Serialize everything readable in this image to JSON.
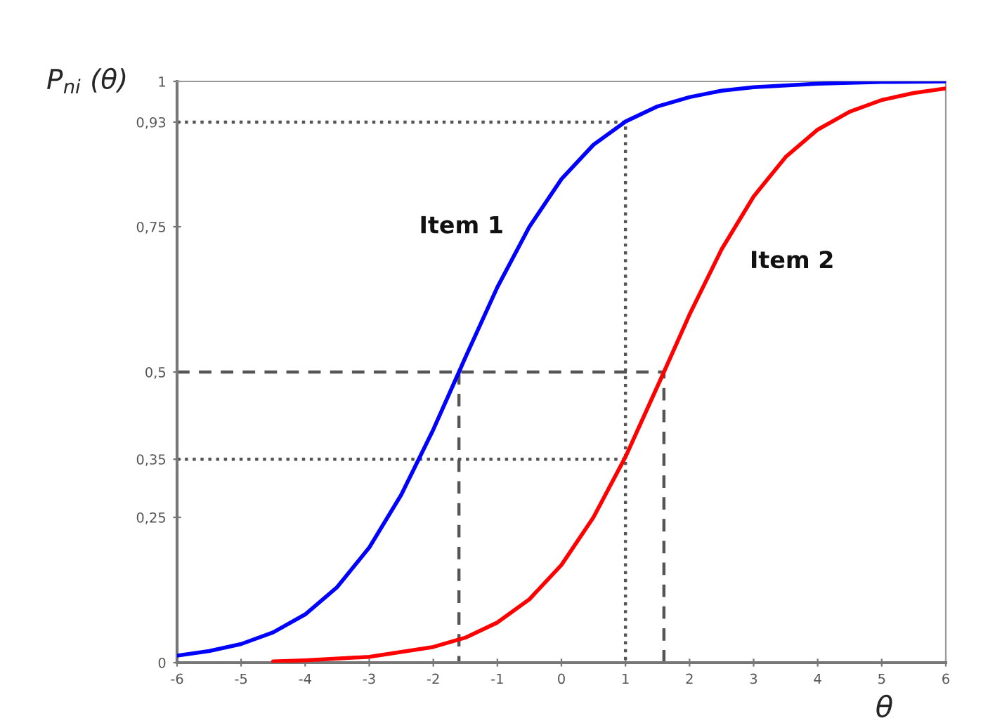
{
  "chart_data": {
    "type": "line",
    "ylabel": "P$_{ni}$ (θ)",
    "xlabel": "θ",
    "xlim": [
      -6,
      6
    ],
    "xticks": [
      -6,
      -5,
      -4,
      -3,
      -2,
      -1,
      0,
      1,
      2,
      3,
      4,
      5,
      6
    ],
    "ylim": [
      0,
      1
    ],
    "yticks": [
      0,
      {
        "value": 0.25,
        "label": "0,25"
      },
      {
        "value": 0.35,
        "label": "0,35"
      },
      {
        "value": 0.5,
        "label": "0,5"
      },
      {
        "value": 0.75,
        "label": "0,75"
      },
      {
        "value": 0.93,
        "label": "0,93"
      },
      1
    ],
    "grid": false,
    "marker": "none",
    "series": [
      {
        "name": "Item 1",
        "color": "#0000ff",
        "line_style": "solid",
        "x": [
          -6,
          -5.5,
          -5,
          -4.5,
          -4,
          -3.5,
          -3,
          -2.5,
          -2,
          -1.6,
          -1.5,
          -1,
          -0.5,
          0,
          0.5,
          1,
          1.5,
          2,
          2.5,
          3,
          4,
          5,
          6
        ],
        "values": [
          0.012,
          0.02,
          0.032,
          0.052,
          0.083,
          0.13,
          0.198,
          0.289,
          0.401,
          0.5,
          0.525,
          0.646,
          0.75,
          0.832,
          0.891,
          0.931,
          0.957,
          0.973,
          0.984,
          0.99,
          0.996,
          0.999,
          1.0
        ]
      },
      {
        "name": "Item 2",
        "color": "#ff0000",
        "line_style": "solid",
        "x": [
          -4.5,
          -4,
          -3,
          -2,
          -1.5,
          -1,
          -0.5,
          0,
          0.5,
          1,
          1.6,
          2,
          2.5,
          3,
          3.5,
          4,
          4.5,
          5,
          5.5,
          6
        ],
        "values": [
          0.002,
          0.004,
          0.01,
          0.027,
          0.043,
          0.069,
          0.109,
          0.168,
          0.25,
          0.354,
          0.5,
          0.599,
          0.711,
          0.802,
          0.87,
          0.917,
          0.948,
          0.968,
          0.98,
          0.988
        ]
      },
      {
        "color": "#555555",
        "line_style": "dashed",
        "x": [
          -6,
          1.6,
          1.6
        ],
        "values": [
          0.5,
          0.5,
          0
        ]
      },
      {
        "color": "#555555",
        "line_style": "dashed",
        "x": [
          -1.6,
          -1.6
        ],
        "values": [
          0.5,
          0
        ]
      },
      {
        "color": "#555555",
        "line_style": "dotted",
        "x": [
          -6,
          1,
          1
        ],
        "values": [
          0.93,
          0.93,
          0
        ]
      },
      {
        "color": "#555555",
        "line_style": "dotted",
        "x": [
          -6,
          1
        ],
        "values": [
          0.35,
          0.35
        ]
      }
    ]
  }
}
